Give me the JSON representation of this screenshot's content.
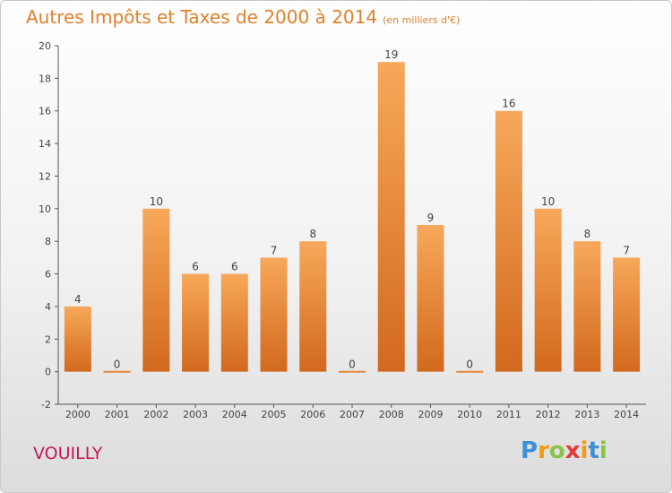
{
  "header": {
    "title": "Autres Impôts et Taxes de 2000 à 2014",
    "subtitle": "(en milliers d'€)"
  },
  "footer": {
    "place": "VOUILLY",
    "logo_letters": [
      "P",
      "r",
      "o",
      "x",
      "i",
      "t",
      "i"
    ],
    "logo_colors": [
      "#3d8fd6",
      "#f39c12",
      "#8bc34a",
      "#e53935",
      "#f39c12",
      "#3d8fd6",
      "#8bc34a"
    ]
  },
  "chart_data": {
    "type": "bar",
    "categories": [
      "2000",
      "2001",
      "2002",
      "2003",
      "2004",
      "2005",
      "2006",
      "2007",
      "2008",
      "2009",
      "2010",
      "2011",
      "2012",
      "2013",
      "2014"
    ],
    "values": [
      4,
      0,
      10,
      6,
      6,
      7,
      8,
      0,
      19,
      9,
      0,
      16,
      10,
      8,
      7
    ],
    "title": "Autres Impôts et Taxes de 2000 à 2014",
    "xlabel": "",
    "ylabel": "",
    "ylim": [
      -2,
      20
    ],
    "yticks": [
      -2,
      0,
      2,
      4,
      6,
      8,
      10,
      12,
      14,
      16,
      18,
      20
    ],
    "grid": false,
    "bar_color_top": "#f7a85a",
    "bar_color_bottom": "#d2691e",
    "axis_color": "#555555"
  }
}
